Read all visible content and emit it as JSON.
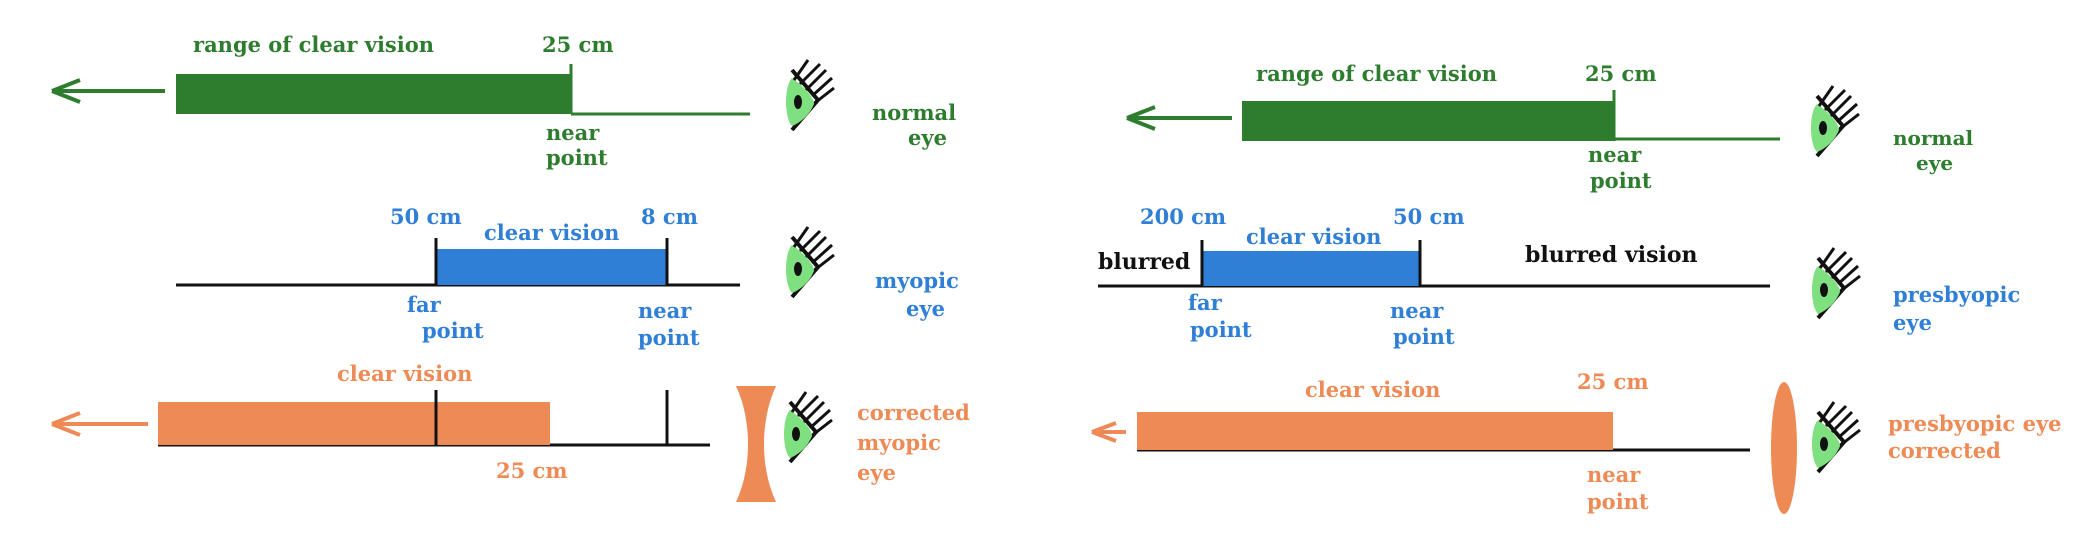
{
  "colors": {
    "green": "#2e7d2e",
    "blue": "#2f7fd6",
    "blue_text": "#2f7fd6",
    "orange": "#ee8a55",
    "black": "#111111",
    "eye_green": "#7fe07f"
  },
  "left": {
    "normal": {
      "range_label": "range of clear vision",
      "dist_label": "25 cm",
      "point_label_1": "near",
      "point_label_2": "point",
      "eye_label_1": "normal",
      "eye_label_2": "eye"
    },
    "myopic": {
      "far_dist": "50 cm",
      "clear_label": "clear vision",
      "near_dist": "8 cm",
      "far_label_1": "far",
      "far_label_2": "point",
      "near_label_1": "near",
      "near_label_2": "point",
      "eye_label_1": "myopic",
      "eye_label_2": "eye"
    },
    "corrected": {
      "clear_label": "clear vision",
      "dist_label": "25 cm",
      "eye_label_1": "corrected",
      "eye_label_2": "myopic",
      "eye_label_3": "eye"
    }
  },
  "right": {
    "normal": {
      "range_label": "range of clear vision",
      "dist_label": "25 cm",
      "point_label_1": "near",
      "point_label_2": "point",
      "eye_label_1": "normal",
      "eye_label_2": "eye"
    },
    "presbyopic": {
      "far_dist": "200 cm",
      "clear_label": "clear vision",
      "near_dist": "50 cm",
      "blurred_left": "blurred",
      "blurred_right": "blurred vision",
      "far_label_1": "far",
      "far_label_2": "point",
      "near_label_1": "near",
      "near_label_2": "point",
      "eye_label_1": "presbyopic",
      "eye_label_2": "eye"
    },
    "corrected": {
      "clear_label": "clear vision",
      "dist_label": "25 cm",
      "point_label_1": "near",
      "point_label_2": "point",
      "eye_label_1": "presbyopic eye",
      "eye_label_2": "corrected"
    }
  },
  "icons": {
    "arrow": "left-arrow-icon",
    "eye": "eye-icon",
    "concave_lens": "concave-lens-icon",
    "convex_lens": "convex-lens-icon"
  }
}
